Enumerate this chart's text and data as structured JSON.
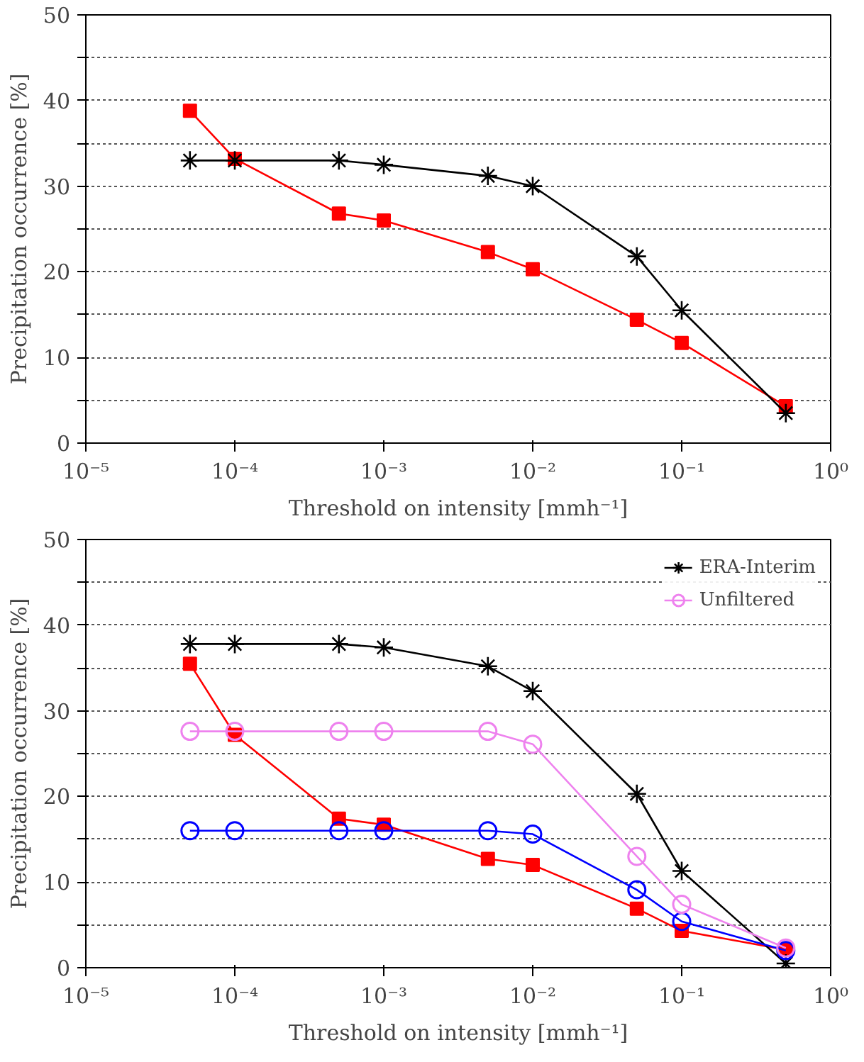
{
  "chart_data": [
    {
      "type": "line",
      "xlabel": "Threshold on intensity [mmh⁻¹]",
      "ylabel": "Precipitation occurrence [%]",
      "log": "x",
      "grid": "y",
      "legend": false,
      "x": [
        5e-05,
        0.0001,
        0.0005,
        0.001,
        0.005,
        0.01,
        0.05,
        0.1,
        0.5
      ],
      "xlim": [
        1e-05,
        1
      ],
      "xticks": [
        {
          "value": 1e-05,
          "label": "10⁻⁵"
        },
        {
          "value": 0.0001,
          "label": "10⁻⁴"
        },
        {
          "value": 0.001,
          "label": "10⁻³"
        },
        {
          "value": 0.01,
          "label": "10⁻²"
        },
        {
          "value": 0.1,
          "label": "10⁻¹"
        },
        {
          "value": 1,
          "label": "10⁰"
        }
      ],
      "ylim": [
        0,
        50
      ],
      "yticks": [
        0,
        {
          "value": 5,
          "label": null
        },
        10,
        {
          "value": 15,
          "label": null
        },
        20,
        {
          "value": 25,
          "label": null
        },
        30,
        {
          "value": 35,
          "label": null
        },
        40,
        {
          "value": 45,
          "label": null
        },
        50
      ],
      "series": [
        {
          "color": "#ff0000",
          "marker": "square",
          "values": [
            38.8,
            33.2,
            26.8,
            26.0,
            22.3,
            20.3,
            14.4,
            11.7,
            4.3
          ]
        },
        {
          "color": "#000000",
          "marker": "cross",
          "values": [
            33.0,
            33.0,
            33.0,
            32.5,
            31.2,
            30.0,
            21.8,
            15.5,
            3.5
          ]
        }
      ]
    },
    {
      "type": "line",
      "xlabel": "Threshold on intensity [mmh⁻¹]",
      "ylabel": "Precipitation occurrence [%]",
      "log": "x",
      "grid": "y",
      "legend": "top right",
      "x": [
        5e-05,
        0.0001,
        0.0005,
        0.001,
        0.005,
        0.01,
        0.05,
        0.1,
        0.5
      ],
      "xlim": [
        1e-05,
        1
      ],
      "xticks": [
        {
          "value": 1e-05,
          "label": "10⁻⁵"
        },
        {
          "value": 0.0001,
          "label": "10⁻⁴"
        },
        {
          "value": 0.001,
          "label": "10⁻³"
        },
        {
          "value": 0.01,
          "label": "10⁻²"
        },
        {
          "value": 0.1,
          "label": "10⁻¹"
        },
        {
          "value": 1,
          "label": "10⁰"
        }
      ],
      "ylim": [
        0,
        50
      ],
      "yticks": [
        0,
        {
          "value": 5,
          "label": null
        },
        10,
        {
          "value": 15,
          "label": null
        },
        20,
        {
          "value": 25,
          "label": null
        },
        30,
        {
          "value": 35,
          "label": null
        },
        40,
        {
          "value": 45,
          "label": null
        },
        50
      ],
      "series": [
        {
          "color": "#ff0000",
          "marker": "square",
          "values": [
            35.5,
            27.2,
            17.4,
            16.7,
            12.7,
            12.0,
            6.9,
            4.3,
            2.1
          ]
        },
        {
          "name": "ERA-Interim",
          "color": "#000000",
          "marker": "cross",
          "values": [
            37.8,
            37.8,
            37.8,
            37.4,
            35.2,
            32.3,
            20.3,
            11.3,
            0.5
          ]
        },
        {
          "color": "#0000ff",
          "marker": "circle",
          "values": [
            16.0,
            16.0,
            16.0,
            16.0,
            16.0,
            15.6,
            9.1,
            5.4,
            2.0
          ]
        },
        {
          "name": "Unfiltered",
          "color": "#ee82ee",
          "marker": "circle",
          "values": [
            27.6,
            27.6,
            27.6,
            27.6,
            27.6,
            26.1,
            13.0,
            7.4,
            2.3
          ]
        }
      ]
    }
  ]
}
